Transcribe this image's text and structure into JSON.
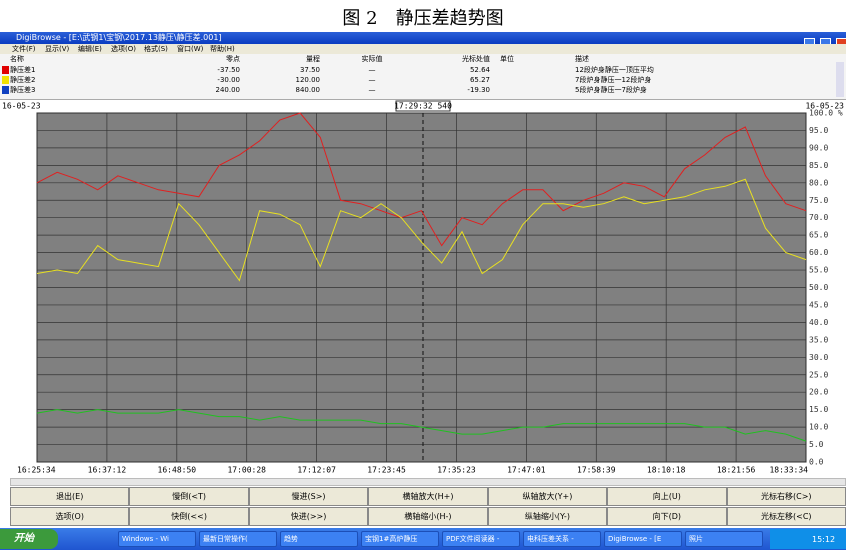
{
  "caption": "图 2　静压差趋势图",
  "window": {
    "title": "DigiBrowse - [E:\\武钢1\\宝钢\\2017.13静压\\静压差.001]",
    "menu": [
      "文件(F)",
      "显示(V)",
      "编辑(E)",
      "选项(O)",
      "格式(S)",
      "窗口(W)",
      "帮助(H)"
    ]
  },
  "table": {
    "headers": [
      "名称",
      "零点",
      "量程",
      "实际值",
      "光标处值",
      "单位",
      "描述"
    ],
    "rows": [
      {
        "marker": "#e00000",
        "zero": "-37.50",
        "span": "37.50",
        "actual": "—",
        "cursor": "52.64",
        "desc": "12段炉身静压一顶压平均"
      },
      {
        "marker": "#f0e000",
        "zero": "-30.00",
        "span": "120.00",
        "actual": "—",
        "cursor": "65.27",
        "desc": "7段炉身静压一12段炉身"
      },
      {
        "marker": "#1040c0",
        "zero": "240.00",
        "span": "840.00",
        "actual": "—",
        "cursor": "-19.30",
        "desc": "5段炉身静压一7段炉身"
      }
    ]
  },
  "dates": {
    "left": "16-05-23",
    "cursor": "17:29:32 540",
    "right": "16-05-23"
  },
  "chart_data": {
    "type": "line",
    "xticks": [
      "16:25:34",
      "16:37:12",
      "16:48:50",
      "17:00:28",
      "17:12:07",
      "17:23:45",
      "17:35:23",
      "17:47:01",
      "17:58:39",
      "18:10:18",
      "18:21:56",
      "18:33:34"
    ],
    "ylim": [
      0,
      100
    ],
    "yticks": [
      {
        "value": 0,
        "label": "0.0"
      },
      {
        "value": 5,
        "label": "5.0"
      },
      {
        "value": 10,
        "label": "10.0"
      },
      {
        "value": 15,
        "label": "15.0"
      },
      {
        "value": 20,
        "label": "20.0"
      },
      {
        "value": 25,
        "label": "25.0"
      },
      {
        "value": 30,
        "label": "30.0"
      },
      {
        "value": 35,
        "label": "35.0"
      },
      {
        "value": 40,
        "label": "40.0"
      },
      {
        "value": 45,
        "label": "45.0"
      },
      {
        "value": 50,
        "label": "50.0"
      },
      {
        "value": 55,
        "label": "55.0"
      },
      {
        "value": 60,
        "label": "60.0"
      },
      {
        "value": 65,
        "label": "65.0"
      },
      {
        "value": 70,
        "label": "70.0"
      },
      {
        "value": 75,
        "label": "75.0"
      },
      {
        "value": 80,
        "label": "80.0"
      },
      {
        "value": 85,
        "label": "85.0"
      },
      {
        "value": 90,
        "label": "90.0"
      },
      {
        "value": 95,
        "label": "95.0"
      },
      {
        "value": 100,
        "label": "100.0 %"
      }
    ],
    "grid": true,
    "series": [
      {
        "name": "静压差1",
        "color": "#e02020",
        "values": [
          80,
          83,
          81,
          78,
          82,
          80,
          78,
          77,
          76,
          85,
          88,
          92,
          98,
          100,
          93,
          75,
          74,
          72,
          70,
          72,
          62,
          70,
          68,
          74,
          78,
          78,
          72,
          75,
          77,
          80,
          79,
          76,
          84,
          88,
          93,
          96,
          82,
          74,
          72
        ]
      },
      {
        "name": "静压差2",
        "color": "#e8e020",
        "values": [
          54,
          55,
          54,
          62,
          58,
          57,
          56,
          74,
          68,
          60,
          52,
          72,
          71,
          68,
          56,
          72,
          70,
          74,
          70,
          63,
          57,
          66,
          54,
          58,
          68,
          74,
          74,
          73,
          74,
          76,
          74,
          75,
          76,
          78,
          79,
          81,
          67,
          60,
          58
        ]
      },
      {
        "name": "静压差3",
        "color": "#20c020",
        "values": [
          14,
          15,
          14,
          15,
          14,
          14,
          14,
          15,
          14,
          13,
          13,
          12,
          13,
          12,
          12,
          12,
          12,
          11,
          11,
          10,
          9,
          8,
          8,
          9,
          10,
          10,
          11,
          11,
          11,
          11,
          11,
          11,
          11,
          10,
          10,
          8,
          9,
          8,
          6
        ]
      }
    ]
  },
  "buttons": [
    [
      "退出(E)",
      "慢倒(<T)",
      "慢进(S>)",
      "横轴放大(H+)",
      "纵轴放大(Y+)",
      "向上(U)",
      "光标右移(C>)"
    ],
    [
      "选项(O)",
      "快倒(<<)",
      "快进(>>)",
      "横轴缩小(H-)",
      "纵轴缩小(Y-)",
      "向下(D)",
      "光标左移(<C)"
    ]
  ],
  "taskbar": {
    "start": "开始",
    "items": [
      "Windows - Wi",
      "最新日常操作(",
      "趋势",
      "宝钢1#高炉静压",
      "PDF文件阅读器 -",
      "电科压差关系 -",
      "DigiBrowse - [E",
      "照片"
    ],
    "clock": "15:12"
  }
}
